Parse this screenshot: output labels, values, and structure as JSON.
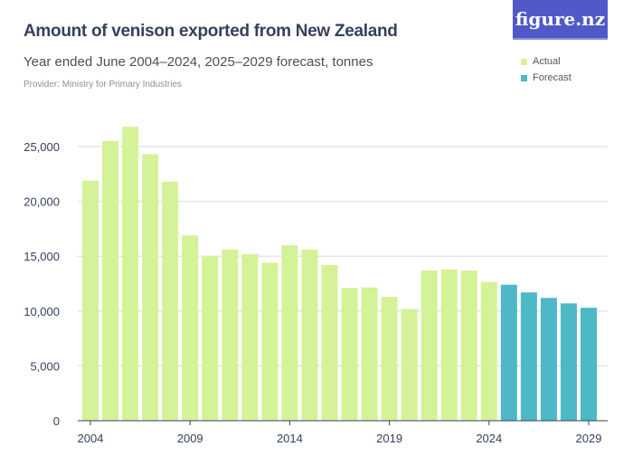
{
  "title": "Amount of venison exported from New Zealand",
  "subtitle": "Year ended June 2004–2024, 2025–2029 forecast, tonnes",
  "provider": "Provider: Ministry for Primary Industries",
  "logo": "figure.nz",
  "colors": {
    "actual": "#d4f297",
    "forecast": "#4db8c6",
    "grid": "#e5e5e5",
    "axis_text": "#36405e"
  },
  "chart_data": {
    "type": "bar",
    "xlabel": "",
    "ylabel": "",
    "ylim": [
      0,
      27500
    ],
    "yticks": [
      0,
      5000,
      10000,
      15000,
      20000,
      25000
    ],
    "ytick_labels": [
      "0",
      "5,000",
      "10,000",
      "15,000",
      "20,000",
      "25,000"
    ],
    "xtick_labels": [
      "2004",
      "2009",
      "2014",
      "2019",
      "2024",
      "2029"
    ],
    "grid": true,
    "legend": "top-right",
    "categories": [
      2004,
      2005,
      2006,
      2007,
      2008,
      2009,
      2010,
      2011,
      2012,
      2013,
      2014,
      2015,
      2016,
      2017,
      2018,
      2019,
      2020,
      2021,
      2022,
      2023,
      2024,
      2025,
      2026,
      2027,
      2028,
      2029
    ],
    "series": [
      {
        "name": "Actual",
        "values": [
          21900,
          25500,
          26800,
          24300,
          21800,
          16900,
          15000,
          15600,
          15200,
          14400,
          16000,
          15600,
          14200,
          12100,
          12150,
          11300,
          10200,
          13700,
          13800,
          13700,
          12650,
          null,
          null,
          null,
          null,
          null
        ]
      },
      {
        "name": "Forecast",
        "values": [
          null,
          null,
          null,
          null,
          null,
          null,
          null,
          null,
          null,
          null,
          null,
          null,
          null,
          null,
          null,
          null,
          null,
          null,
          null,
          null,
          null,
          12400,
          11700,
          11200,
          10700,
          10300
        ]
      }
    ]
  }
}
